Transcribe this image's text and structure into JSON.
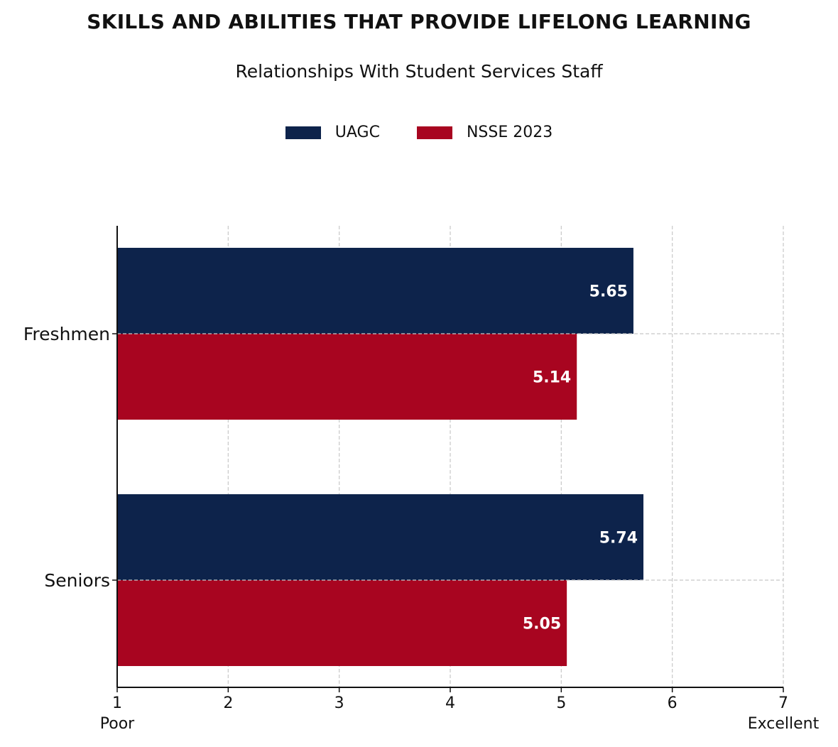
{
  "chart_data": {
    "type": "bar",
    "orientation": "horizontal",
    "title": "SKILLS AND ABILITIES THAT PROVIDE LIFELONG LEARNING",
    "subtitle": "Relationships With Student Services Staff",
    "categories": [
      "Freshmen",
      "Seniors"
    ],
    "series": [
      {
        "name": "UAGC",
        "values": [
          5.65,
          5.74
        ],
        "color": "#0d234b"
      },
      {
        "name": "NSSE 2023",
        "values": [
          5.14,
          5.05
        ],
        "color": "#a80520"
      }
    ],
    "xlim": [
      1,
      7
    ],
    "xticks": [
      1,
      2,
      3,
      4,
      5,
      6,
      7
    ],
    "x_end_labels": {
      "min": "Poor",
      "max": "Excellent"
    },
    "grid": true,
    "legend_position": "top-center"
  }
}
